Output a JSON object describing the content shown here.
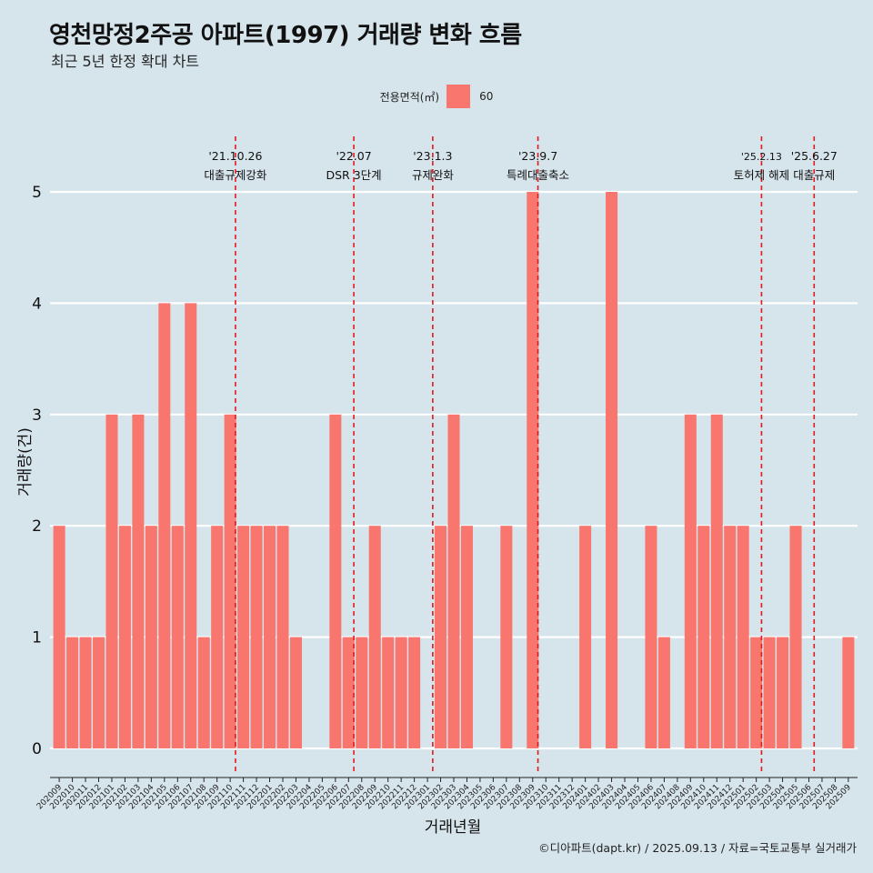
{
  "title": "영천망정2주공 아파트(1997) 거래량 변화 흐름",
  "subtitle": "최근 5년 한정 확대 차트",
  "legend": {
    "title": "전용면적(㎡)",
    "item": "60"
  },
  "caption": "©디아파트(dapt.kr) / 2025.09.13 / 자료=국토교통부 실거래가",
  "colors": {
    "background": "#d6e4ec",
    "bar": "#f8766d",
    "event_line": "#e31a1c",
    "grid": "#ffffff"
  },
  "chart_data": {
    "type": "bar",
    "xlabel": "거래년월",
    "ylabel": "거래량(건)",
    "ylim": [
      0,
      5
    ],
    "yticks": [
      0,
      1,
      2,
      3,
      4,
      5
    ],
    "grid": true,
    "legend_position": "top",
    "series": [
      {
        "name": "60"
      }
    ],
    "bars": [
      {
        "month": "202009",
        "value": 2
      },
      {
        "month": "202010",
        "value": 1
      },
      {
        "month": "202011",
        "value": 1
      },
      {
        "month": "202012",
        "value": 1
      },
      {
        "month": "202101",
        "value": 3
      },
      {
        "month": "202102",
        "value": 2
      },
      {
        "month": "202103",
        "value": 3
      },
      {
        "month": "202104",
        "value": 2
      },
      {
        "month": "202105",
        "value": 4
      },
      {
        "month": "202106",
        "value": 2
      },
      {
        "month": "202107",
        "value": 4
      },
      {
        "month": "202108",
        "value": 1
      },
      {
        "month": "202109",
        "value": 2
      },
      {
        "month": "202110",
        "value": 3
      },
      {
        "month": "202111",
        "value": 2
      },
      {
        "month": "202112",
        "value": 2
      },
      {
        "month": "202201",
        "value": 2
      },
      {
        "month": "202202",
        "value": 2
      },
      {
        "month": "202203",
        "value": 1
      },
      {
        "month": "202204",
        "value": 0
      },
      {
        "month": "202205",
        "value": 0
      },
      {
        "month": "202206",
        "value": 3
      },
      {
        "month": "202207",
        "value": 1
      },
      {
        "month": "202208",
        "value": 1
      },
      {
        "month": "202209",
        "value": 2
      },
      {
        "month": "202210",
        "value": 1
      },
      {
        "month": "202211",
        "value": 1
      },
      {
        "month": "202212",
        "value": 1
      },
      {
        "month": "202301",
        "value": 0
      },
      {
        "month": "202302",
        "value": 2
      },
      {
        "month": "202303",
        "value": 3
      },
      {
        "month": "202304",
        "value": 2
      },
      {
        "month": "202305",
        "value": 0
      },
      {
        "month": "202306",
        "value": 0
      },
      {
        "month": "202307",
        "value": 2
      },
      {
        "month": "202308",
        "value": 0
      },
      {
        "month": "202309",
        "value": 5
      },
      {
        "month": "202310",
        "value": 0
      },
      {
        "month": "202311",
        "value": 0
      },
      {
        "month": "202312",
        "value": 0
      },
      {
        "month": "202401",
        "value": 2
      },
      {
        "month": "202402",
        "value": 0
      },
      {
        "month": "202403",
        "value": 5
      },
      {
        "month": "202404",
        "value": 0
      },
      {
        "month": "202405",
        "value": 0
      },
      {
        "month": "202406",
        "value": 2
      },
      {
        "month": "202407",
        "value": 1
      },
      {
        "month": "202408",
        "value": 0
      },
      {
        "month": "202409",
        "value": 3
      },
      {
        "month": "202410",
        "value": 2
      },
      {
        "month": "202411",
        "value": 3
      },
      {
        "month": "202412",
        "value": 2
      },
      {
        "month": "202501",
        "value": 2
      },
      {
        "month": "202502",
        "value": 1
      },
      {
        "month": "202503",
        "value": 1
      },
      {
        "month": "202504",
        "value": 1
      },
      {
        "month": "202505",
        "value": 2
      },
      {
        "month": "202506",
        "value": 0
      },
      {
        "month": "202507",
        "value": 0
      },
      {
        "month": "202508",
        "value": 0
      },
      {
        "month": "202509",
        "value": 1
      }
    ],
    "events": [
      {
        "date": "'21.10.26",
        "label": "대출규제강화",
        "month_pos": 13.4
      },
      {
        "date": "'22.07",
        "label": "DSR 3단계",
        "month_pos": 22.4
      },
      {
        "date": "'23.1.3",
        "label": "규제완화",
        "month_pos": 28.4
      },
      {
        "date": "'23.9.7",
        "label": "특례대출축소",
        "month_pos": 36.4
      },
      {
        "date": "'25.2.13",
        "label": "토허제 해제",
        "month_pos": 53.4
      },
      {
        "date": "'25.6.27",
        "label": "대출규제",
        "month_pos": 57.4
      }
    ]
  }
}
